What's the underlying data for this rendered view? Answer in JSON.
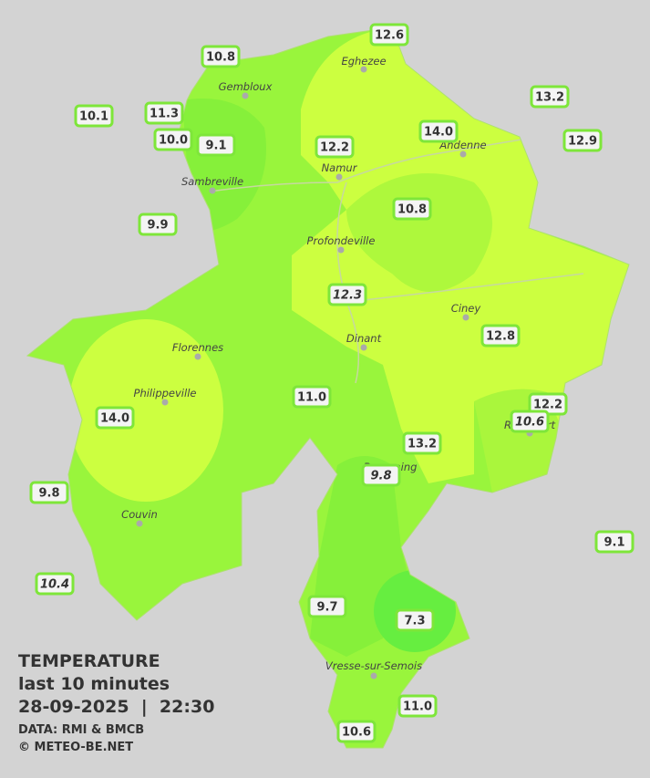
{
  "legend": {
    "title": "TEMPERATURE",
    "subtitle": "last 10 minutes",
    "datetime": "28-09-2025  |  22:30",
    "source": "DATA: RMI & BMCB",
    "copyright": "© METEO-BE.NET"
  },
  "cities": [
    "Eghezee",
    "Gembloux",
    "Andenne",
    "Namur",
    "Sambreville",
    "Profondeville",
    "Ciney",
    "Dinant",
    "Florennes",
    "Philippeville",
    "Rochefort",
    "Beauraing",
    "Couvin",
    "Vresse-sur-Semois"
  ],
  "stations": [
    "12.6",
    "10.8",
    "13.2",
    "10.1",
    "11.3",
    "14.0",
    "12.9",
    "10.0",
    "9.1",
    "12.2",
    "10.8",
    "9.9",
    "12.3",
    "12.8",
    "11.0",
    "12.2",
    "14.0",
    "10.6",
    "13.2",
    "9.8",
    "9.8",
    "9.1",
    "10.4",
    "9.7",
    "7.3",
    "11.0",
    "10.6"
  ]
}
